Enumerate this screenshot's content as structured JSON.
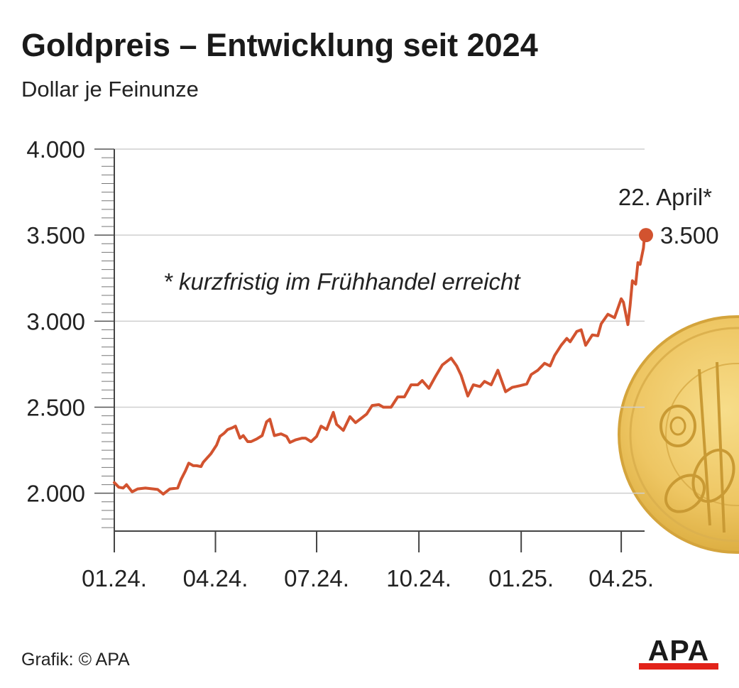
{
  "chart_data": {
    "type": "line",
    "title": "Goldpreis – Entwicklung seit 2024",
    "subtitle": "Dollar je Feinunze",
    "xlabel": "",
    "ylabel": "",
    "ylim": [
      1780,
      4000
    ],
    "yticks": [
      2000,
      2500,
      3000,
      3500,
      4000
    ],
    "ytick_labels": [
      "2.000",
      "2.500",
      "3.000",
      "3.500",
      "4.000"
    ],
    "xticks": [
      "2024-01-01",
      "2024-04-01",
      "2024-07-01",
      "2024-10-01",
      "2025-01-01",
      "2025-04-01"
    ],
    "xtick_labels": [
      "01.24.",
      "04.24.",
      "07.24.",
      "10.24.",
      "01.25.",
      "04.25."
    ],
    "xlim": [
      "2024-01-01",
      "2025-04-22"
    ],
    "grid": true,
    "line_color": "#d2532f",
    "series": [
      {
        "values": [
          [
            "2024-01-01",
            2062
          ],
          [
            "2024-01-05",
            2035
          ],
          [
            "2024-01-09",
            2030
          ],
          [
            "2024-01-12",
            2050
          ],
          [
            "2024-01-17",
            2008
          ],
          [
            "2024-01-22",
            2025
          ],
          [
            "2024-01-29",
            2030
          ],
          [
            "2024-02-05",
            2025
          ],
          [
            "2024-02-09",
            2022
          ],
          [
            "2024-02-14",
            1995
          ],
          [
            "2024-02-20",
            2025
          ],
          [
            "2024-02-27",
            2030
          ],
          [
            "2024-03-01",
            2080
          ],
          [
            "2024-03-05",
            2130
          ],
          [
            "2024-03-08",
            2175
          ],
          [
            "2024-03-12",
            2160
          ],
          [
            "2024-03-15",
            2160
          ],
          [
            "2024-03-19",
            2155
          ],
          [
            "2024-03-21",
            2180
          ],
          [
            "2024-03-28",
            2230
          ],
          [
            "2024-04-02",
            2280
          ],
          [
            "2024-04-05",
            2330
          ],
          [
            "2024-04-09",
            2350
          ],
          [
            "2024-04-12",
            2370
          ],
          [
            "2024-04-16",
            2380
          ],
          [
            "2024-04-19",
            2390
          ],
          [
            "2024-04-23",
            2320
          ],
          [
            "2024-04-26",
            2335
          ],
          [
            "2024-04-30",
            2300
          ],
          [
            "2024-05-03",
            2300
          ],
          [
            "2024-05-08",
            2315
          ],
          [
            "2024-05-13",
            2335
          ],
          [
            "2024-05-17",
            2415
          ],
          [
            "2024-05-20",
            2430
          ],
          [
            "2024-05-24",
            2335
          ],
          [
            "2024-05-30",
            2345
          ],
          [
            "2024-06-04",
            2330
          ],
          [
            "2024-06-07",
            2295
          ],
          [
            "2024-06-12",
            2310
          ],
          [
            "2024-06-18",
            2320
          ],
          [
            "2024-06-21",
            2320
          ],
          [
            "2024-06-26",
            2300
          ],
          [
            "2024-07-01",
            2330
          ],
          [
            "2024-07-05",
            2390
          ],
          [
            "2024-07-10",
            2370
          ],
          [
            "2024-07-16",
            2470
          ],
          [
            "2024-07-19",
            2400
          ],
          [
            "2024-07-25",
            2365
          ],
          [
            "2024-07-31",
            2445
          ],
          [
            "2024-08-05",
            2410
          ],
          [
            "2024-08-09",
            2430
          ],
          [
            "2024-08-15",
            2460
          ],
          [
            "2024-08-20",
            2510
          ],
          [
            "2024-08-26",
            2515
          ],
          [
            "2024-08-30",
            2500
          ],
          [
            "2024-09-06",
            2500
          ],
          [
            "2024-09-12",
            2560
          ],
          [
            "2024-09-18",
            2560
          ],
          [
            "2024-09-24",
            2630
          ],
          [
            "2024-09-30",
            2630
          ],
          [
            "2024-10-04",
            2655
          ],
          [
            "2024-10-10",
            2610
          ],
          [
            "2024-10-16",
            2680
          ],
          [
            "2024-10-22",
            2745
          ],
          [
            "2024-10-30",
            2785
          ],
          [
            "2024-11-04",
            2740
          ],
          [
            "2024-11-08",
            2685
          ],
          [
            "2024-11-14",
            2565
          ],
          [
            "2024-11-19",
            2630
          ],
          [
            "2024-11-25",
            2620
          ],
          [
            "2024-11-29",
            2650
          ],
          [
            "2024-12-05",
            2630
          ],
          [
            "2024-12-11",
            2715
          ],
          [
            "2024-12-18",
            2590
          ],
          [
            "2024-12-24",
            2615
          ],
          [
            "2024-12-31",
            2625
          ],
          [
            "2025-01-06",
            2635
          ],
          [
            "2025-01-10",
            2690
          ],
          [
            "2025-01-16",
            2715
          ],
          [
            "2025-01-22",
            2755
          ],
          [
            "2025-01-27",
            2740
          ],
          [
            "2025-01-31",
            2800
          ],
          [
            "2025-02-06",
            2860
          ],
          [
            "2025-02-11",
            2900
          ],
          [
            "2025-02-14",
            2880
          ],
          [
            "2025-02-20",
            2940
          ],
          [
            "2025-02-24",
            2950
          ],
          [
            "2025-02-28",
            2860
          ],
          [
            "2025-03-06",
            2920
          ],
          [
            "2025-03-11",
            2915
          ],
          [
            "2025-03-14",
            2985
          ],
          [
            "2025-03-20",
            3040
          ],
          [
            "2025-03-26",
            3020
          ],
          [
            "2025-04-01",
            3130
          ],
          [
            "2025-04-03",
            3110
          ],
          [
            "2025-04-07",
            2980
          ],
          [
            "2025-04-09",
            3090
          ],
          [
            "2025-04-11",
            3235
          ],
          [
            "2025-04-14",
            3215
          ],
          [
            "2025-04-16",
            3340
          ],
          [
            "2025-04-18",
            3330
          ],
          [
            "2025-04-21",
            3425
          ],
          [
            "2025-04-22",
            3500
          ]
        ]
      }
    ],
    "annotations": [
      {
        "text": "22. April*",
        "x": "2025-04-22",
        "y": 3500
      },
      {
        "text": "3.500",
        "x": "2025-04-22",
        "y": 3500
      },
      {
        "text": "* kurzfristig im Frühhandel erreicht"
      }
    ],
    "marker": {
      "x": "2025-04-22",
      "y": 3500
    }
  },
  "footer": {
    "source": "Grafik: © APA",
    "logo_text": "APA",
    "logo_bar_color": "#e2231a"
  }
}
